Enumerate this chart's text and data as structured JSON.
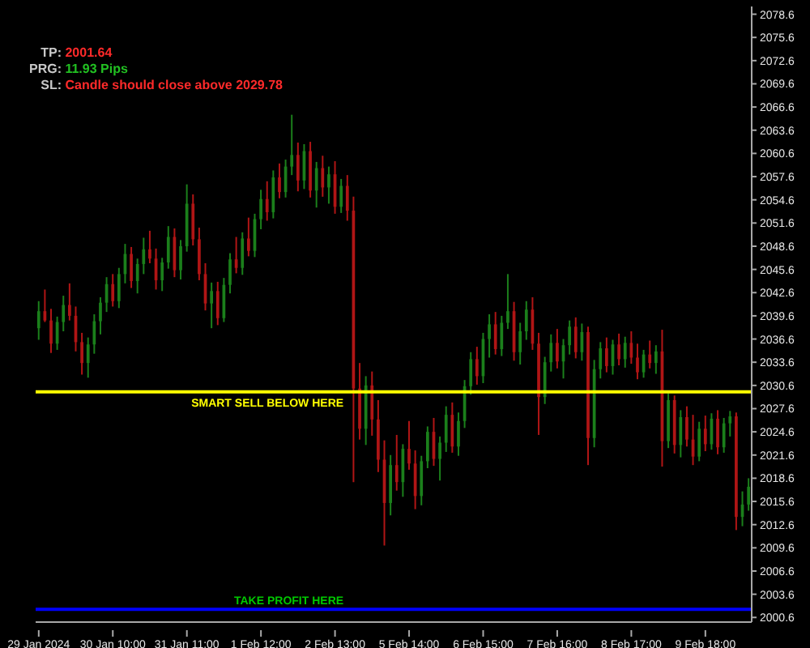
{
  "chart_data": {
    "type": "candlestick",
    "annotations": [
      "TP: 2001.64",
      "PRG: 11.93 Pips",
      "SL: Candle should close above 2029.78"
    ],
    "categories": [
      "29 Jan 2024",
      null,
      null,
      null,
      null,
      null,
      null,
      null,
      null,
      null,
      null,
      null,
      "30 Jan 10:00",
      null,
      null,
      null,
      null,
      null,
      null,
      null,
      null,
      null,
      null,
      null,
      "31 Jan 11:00",
      null,
      null,
      null,
      null,
      null,
      null,
      null,
      null,
      null,
      null,
      null,
      "1 Feb 12:00",
      null,
      null,
      null,
      null,
      null,
      null,
      null,
      null,
      null,
      null,
      null,
      "2 Feb 13:00",
      null,
      null,
      null,
      null,
      null,
      null,
      null,
      null,
      null,
      null,
      null,
      "5 Feb 14:00",
      null,
      null,
      null,
      null,
      null,
      null,
      null,
      null,
      null,
      null,
      null,
      "6 Feb 15:00",
      null,
      null,
      null,
      null,
      null,
      null,
      null,
      null,
      null,
      null,
      null,
      "7 Feb 16:00",
      null,
      null,
      null,
      null,
      null,
      null,
      null,
      null,
      null,
      null,
      null,
      "8 Feb 17:00",
      null,
      null,
      null,
      null,
      null,
      null,
      null,
      null,
      null,
      null,
      null,
      "9 Feb 18:00",
      null,
      null,
      null,
      null,
      null,
      null,
      null
    ],
    "ohlc": [
      [
        2038.0,
        2041.5,
        2036.5,
        2040.2
      ],
      [
        2040.2,
        2043.0,
        2038.8,
        2039.0
      ],
      [
        2039.0,
        2040.5,
        2034.8,
        2036.0
      ],
      [
        2036.0,
        2039.5,
        2035.2,
        2038.8
      ],
      [
        2038.8,
        2042.2,
        2037.6,
        2041.0
      ],
      [
        2041.0,
        2043.8,
        2039.0,
        2039.6
      ],
      [
        2039.6,
        2040.8,
        2035.0,
        2036.2
      ],
      [
        2036.2,
        2037.4,
        2032.0,
        2033.5
      ],
      [
        2033.5,
        2036.8,
        2031.6,
        2035.9
      ],
      [
        2035.9,
        2039.8,
        2034.7,
        2038.9
      ],
      [
        2038.9,
        2042.0,
        2037.2,
        2041.3
      ],
      [
        2041.3,
        2044.6,
        2040.1,
        2043.7
      ],
      [
        2043.7,
        2045.0,
        2040.8,
        2041.5
      ],
      [
        2041.5,
        2045.8,
        2040.6,
        2045.0
      ],
      [
        2045.0,
        2048.9,
        2043.8,
        2047.6
      ],
      [
        2047.6,
        2048.5,
        2043.2,
        2044.1
      ],
      [
        2044.1,
        2047.0,
        2042.5,
        2046.3
      ],
      [
        2046.3,
        2049.7,
        2045.0,
        2048.2
      ],
      [
        2048.2,
        2050.6,
        2046.4,
        2047.0
      ],
      [
        2047.0,
        2048.3,
        2043.0,
        2044.2
      ],
      [
        2044.2,
        2047.1,
        2042.8,
        2046.5
      ],
      [
        2046.5,
        2051.2,
        2045.7,
        2049.8
      ],
      [
        2049.8,
        2050.9,
        2044.6,
        2045.5
      ],
      [
        2045.5,
        2049.4,
        2044.3,
        2048.6
      ],
      [
        2048.6,
        2056.6,
        2047.9,
        2054.1
      ],
      [
        2054.1,
        2055.3,
        2048.7,
        2049.5
      ],
      [
        2049.5,
        2051.0,
        2044.2,
        2045.0
      ],
      [
        2045.0,
        2046.4,
        2040.3,
        2041.2
      ],
      [
        2041.2,
        2043.9,
        2038.0,
        2042.8
      ],
      [
        2042.8,
        2044.0,
        2038.4,
        2039.3
      ],
      [
        2039.3,
        2044.5,
        2038.8,
        2043.6
      ],
      [
        2043.6,
        2047.7,
        2042.5,
        2046.9
      ],
      [
        2046.9,
        2049.8,
        2045.1,
        2045.8
      ],
      [
        2045.8,
        2050.4,
        2044.9,
        2049.6
      ],
      [
        2049.6,
        2052.3,
        2047.3,
        2048.0
      ],
      [
        2048.0,
        2052.8,
        2047.2,
        2052.1
      ],
      [
        2052.1,
        2055.9,
        2050.8,
        2054.7
      ],
      [
        2054.7,
        2057.0,
        2051.9,
        2053.0
      ],
      [
        2053.0,
        2058.4,
        2052.2,
        2057.5
      ],
      [
        2057.5,
        2059.3,
        2054.8,
        2055.6
      ],
      [
        2055.6,
        2059.8,
        2054.9,
        2058.9
      ],
      [
        2058.9,
        2065.6,
        2057.8,
        2060.4
      ],
      [
        2060.4,
        2062.0,
        2055.7,
        2057.1
      ],
      [
        2057.1,
        2061.8,
        2056.0,
        2060.9
      ],
      [
        2060.9,
        2062.1,
        2054.9,
        2055.8
      ],
      [
        2055.8,
        2059.5,
        2053.6,
        2058.7
      ],
      [
        2058.7,
        2060.3,
        2055.0,
        2056.2
      ],
      [
        2056.2,
        2058.9,
        2054.1,
        2057.9
      ],
      [
        2057.9,
        2059.6,
        2052.8,
        2053.7
      ],
      [
        2053.7,
        2057.3,
        2052.9,
        2056.4
      ],
      [
        2056.4,
        2057.8,
        2051.9,
        2053.2
      ],
      [
        2053.2,
        2055.0,
        2018.1,
        2030.2
      ],
      [
        2030.2,
        2033.5,
        2023.6,
        2025.0
      ],
      [
        2025.0,
        2031.8,
        2022.9,
        2030.6
      ],
      [
        2030.6,
        2032.4,
        2024.1,
        2026.2
      ],
      [
        2026.2,
        2028.7,
        2019.4,
        2021.0
      ],
      [
        2021.0,
        2023.5,
        2009.9,
        2015.4
      ],
      [
        2015.4,
        2021.6,
        2013.8,
        2020.3
      ],
      [
        2020.3,
        2024.2,
        2017.0,
        2018.1
      ],
      [
        2018.1,
        2023.0,
        2016.2,
        2022.4
      ],
      [
        2022.4,
        2026.0,
        2019.7,
        2020.5
      ],
      [
        2020.5,
        2022.2,
        2014.6,
        2016.3
      ],
      [
        2016.3,
        2021.5,
        2015.1,
        2020.8
      ],
      [
        2020.8,
        2025.3,
        2019.9,
        2024.6
      ],
      [
        2024.6,
        2026.4,
        2020.2,
        2021.1
      ],
      [
        2021.1,
        2024.0,
        2018.3,
        2023.2
      ],
      [
        2023.2,
        2027.9,
        2022.0,
        2026.8
      ],
      [
        2026.8,
        2028.4,
        2021.9,
        2022.7
      ],
      [
        2022.7,
        2027.1,
        2021.5,
        2026.0
      ],
      [
        2026.0,
        2031.3,
        2025.1,
        2030.5
      ],
      [
        2030.5,
        2034.9,
        2029.4,
        2034.0
      ],
      [
        2034.0,
        2035.6,
        2030.7,
        2031.8
      ],
      [
        2031.8,
        2037.4,
        2030.9,
        2036.6
      ],
      [
        2036.6,
        2039.8,
        2034.2,
        2038.5
      ],
      [
        2038.5,
        2040.1,
        2034.6,
        2035.3
      ],
      [
        2035.3,
        2039.6,
        2034.4,
        2038.7
      ],
      [
        2038.7,
        2045.0,
        2037.9,
        2040.2
      ],
      [
        2040.2,
        2041.4,
        2033.8,
        2034.9
      ],
      [
        2034.9,
        2038.7,
        2033.3,
        2037.6
      ],
      [
        2037.6,
        2041.5,
        2036.5,
        2040.4
      ],
      [
        2040.4,
        2042.0,
        2035.2,
        2036.0
      ],
      [
        2036.0,
        2037.4,
        2024.2,
        2029.1
      ],
      [
        2029.1,
        2034.3,
        2028.2,
        2033.6
      ],
      [
        2033.6,
        2037.2,
        2032.4,
        2036.1
      ],
      [
        2036.1,
        2037.9,
        2032.8,
        2033.7
      ],
      [
        2033.7,
        2036.6,
        2031.5,
        2035.8
      ],
      [
        2035.8,
        2039.0,
        2034.6,
        2038.2
      ],
      [
        2038.2,
        2039.4,
        2034.1,
        2034.9
      ],
      [
        2034.9,
        2038.6,
        2033.8,
        2037.5
      ],
      [
        2037.5,
        2038.2,
        2020.3,
        2023.8
      ],
      [
        2023.8,
        2033.9,
        2022.6,
        2032.7
      ],
      [
        2032.7,
        2036.2,
        2031.5,
        2035.4
      ],
      [
        2035.4,
        2036.8,
        2032.3,
        2033.1
      ],
      [
        2033.1,
        2036.5,
        2032.0,
        2035.9
      ],
      [
        2035.9,
        2037.3,
        2033.2,
        2034.0
      ],
      [
        2034.0,
        2036.9,
        2032.9,
        2036.1
      ],
      [
        2036.1,
        2037.6,
        2033.4,
        2034.2
      ],
      [
        2034.2,
        2036.0,
        2031.4,
        2032.3
      ],
      [
        2032.3,
        2035.2,
        2031.6,
        2034.6
      ],
      [
        2034.6,
        2036.4,
        2032.8,
        2033.5
      ],
      [
        2033.5,
        2035.8,
        2032.1,
        2035.0
      ],
      [
        2035.0,
        2037.8,
        2020.1,
        2023.4
      ],
      [
        2023.4,
        2029.6,
        2022.5,
        2028.7
      ],
      [
        2028.7,
        2029.3,
        2021.8,
        2022.9
      ],
      [
        2022.9,
        2027.4,
        2021.3,
        2026.5
      ],
      [
        2026.5,
        2027.9,
        2022.7,
        2023.6
      ],
      [
        2023.6,
        2026.8,
        2020.3,
        2021.4
      ],
      [
        2021.4,
        2025.9,
        2020.8,
        2025.0
      ],
      [
        2025.0,
        2026.7,
        2022.1,
        2023.0
      ],
      [
        2023.0,
        2027.0,
        2022.3,
        2026.3
      ],
      [
        2026.3,
        2027.4,
        2021.7,
        2022.6
      ],
      [
        2022.6,
        2026.4,
        2021.9,
        2025.7
      ],
      [
        2025.7,
        2027.3,
        2024.0,
        2026.6
      ],
      [
        2026.6,
        2027.1,
        2011.9,
        2013.6
      ],
      [
        2013.6,
        2016.9,
        2012.4,
        2015.2
      ],
      [
        2015.2,
        2018.6,
        2014.4,
        2017.5
      ]
    ],
    "colors": [
      "#1b7f1b",
      "#b01515",
      "#b01515",
      "#1b7f1b",
      "#1b7f1b",
      "#b01515",
      "#b01515",
      "#b01515",
      "#1b7f1b",
      "#1b7f1b",
      "#1b7f1b",
      "#1b7f1b",
      "#b01515",
      "#1b7f1b",
      "#1b7f1b",
      "#b01515",
      "#1b7f1b",
      "#1b7f1b",
      "#b01515",
      "#b01515",
      "#1b7f1b",
      "#1b7f1b",
      "#b01515",
      "#1b7f1b",
      "#1b7f1b",
      "#b01515",
      "#b01515",
      "#b01515",
      "#1b7f1b",
      "#b01515",
      "#1b7f1b",
      "#1b7f1b",
      "#b01515",
      "#1b7f1b",
      "#b01515",
      "#1b7f1b",
      "#1b7f1b",
      "#b01515",
      "#1b7f1b",
      "#b01515",
      "#1b7f1b",
      "#1b7f1b",
      "#b01515",
      "#1b7f1b",
      "#b01515",
      "#1b7f1b",
      "#b01515",
      "#1b7f1b",
      "#b01515",
      "#1b7f1b",
      "#b01515",
      "#b01515",
      "#b01515",
      "#1b7f1b",
      "#b01515",
      "#b01515",
      "#b01515",
      "#1b7f1b",
      "#b01515",
      "#1b7f1b",
      "#b01515",
      "#b01515",
      "#1b7f1b",
      "#1b7f1b",
      "#b01515",
      "#1b7f1b",
      "#1b7f1b",
      "#b01515",
      "#1b7f1b",
      "#1b7f1b",
      "#1b7f1b",
      "#b01515",
      "#1b7f1b",
      "#1b7f1b",
      "#b01515",
      "#1b7f1b",
      "#1b7f1b",
      "#b01515",
      "#1b7f1b",
      "#1b7f1b",
      "#b01515",
      "#b01515",
      "#1b7f1b",
      "#1b7f1b",
      "#b01515",
      "#1b7f1b",
      "#1b7f1b",
      "#b01515",
      "#1b7f1b",
      "#b01515",
      "#1b7f1b",
      "#1b7f1b",
      "#b01515",
      "#1b7f1b",
      "#b01515",
      "#1b7f1b",
      "#b01515",
      "#b01515",
      "#1b7f1b",
      "#b01515",
      "#1b7f1b",
      "#b01515",
      "#1b7f1b",
      "#b01515",
      "#1b7f1b",
      "#b01515",
      "#b01515",
      "#1b7f1b",
      "#b01515",
      "#1b7f1b",
      "#b01515",
      "#1b7f1b",
      "#1b7f1b",
      "#b01515",
      "#1b7f1b",
      "#1b7f1b"
    ],
    "ylim": [
      2000.0,
      2079.6
    ],
    "yticks": [
      2000.6,
      2003.6,
      2006.6,
      2009.6,
      2012.6,
      2015.6,
      2018.6,
      2021.6,
      2024.6,
      2027.6,
      2030.6,
      2033.6,
      2036.6,
      2039.6,
      2042.6,
      2045.6,
      2048.6,
      2051.6,
      2054.6,
      2057.6,
      2060.6,
      2063.6,
      2066.6,
      2069.6,
      2072.6,
      2075.6,
      2078.6
    ],
    "ref_lines": [
      {
        "axis": "y",
        "value": 2029.78,
        "label": "SMART SELL BELOW HERE",
        "color": "#ffff00"
      },
      {
        "axis": "y",
        "value": 2001.64,
        "label": "TAKE PROFIT HERE",
        "color": "#0000ff"
      }
    ]
  }
}
